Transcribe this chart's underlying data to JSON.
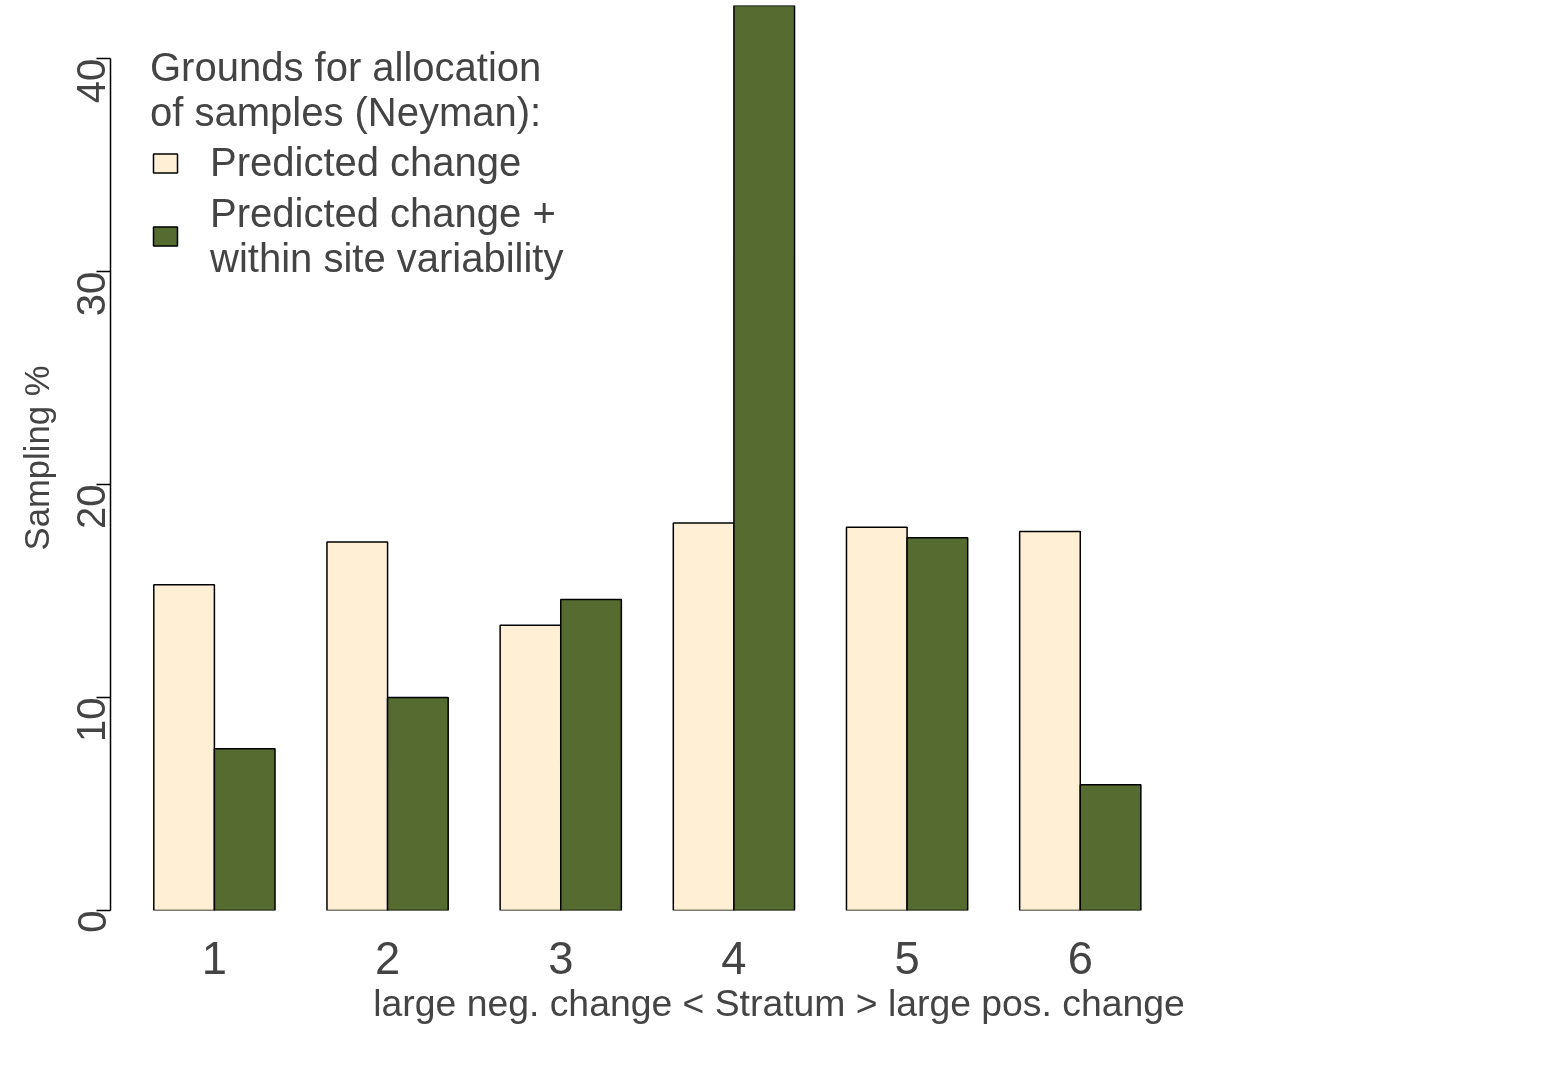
{
  "chart_data": {
    "type": "bar",
    "ylabel": "Sampling %",
    "xlabel": "large neg. change   <   Stratum   >   large pos. change",
    "legend_title": "Grounds for allocation\nof samples (Neyman):",
    "categories": [
      "1",
      "2",
      "3",
      "4",
      "5",
      "6"
    ],
    "series": [
      {
        "name": "Predicted change",
        "color": "#ffefd5",
        "values": [
          15.3,
          17.3,
          13.4,
          18.2,
          18.0,
          17.8
        ]
      },
      {
        "name": "Predicted change +\nwithin site variability",
        "color": "#556b2f",
        "values": [
          7.6,
          10.0,
          14.6,
          42.5,
          17.5,
          5.9
        ]
      }
    ],
    "ylim": [
      0,
      42.5
    ],
    "yticks": [
      0,
      10,
      20,
      30,
      40
    ],
    "grid": false,
    "legend": "top left"
  }
}
